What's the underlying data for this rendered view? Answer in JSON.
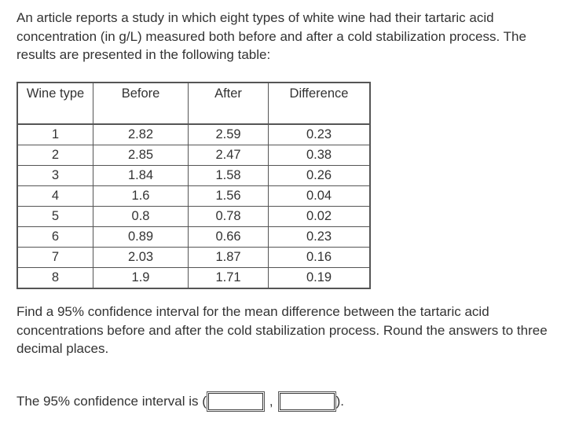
{
  "intro": "An article reports a study in which eight types of white wine had their tartaric acid concentration (in g/L) measured both before and after a cold stabilization process. The results are presented in the following table:",
  "table": {
    "headers": {
      "wine_type": "Wine type",
      "before": "Before",
      "after": "After",
      "difference": "Difference"
    },
    "rows": [
      {
        "wine": "1",
        "before": "2.82",
        "after": "2.59",
        "difference": "0.23"
      },
      {
        "wine": "2",
        "before": "2.85",
        "after": "2.47",
        "difference": "0.38"
      },
      {
        "wine": "3",
        "before": "1.84",
        "after": "1.58",
        "difference": "0.26"
      },
      {
        "wine": "4",
        "before": "1.6",
        "after": "1.56",
        "difference": "0.04"
      },
      {
        "wine": "5",
        "before": "0.8",
        "after": "0.78",
        "difference": "0.02"
      },
      {
        "wine": "6",
        "before": "0.89",
        "after": "0.66",
        "difference": "0.23"
      },
      {
        "wine": "7",
        "before": "2.03",
        "after": "1.87",
        "difference": "0.16"
      },
      {
        "wine": "8",
        "before": "1.9",
        "after": "1.71",
        "difference": "0.19"
      }
    ]
  },
  "question": "Find a 95% confidence interval for the mean difference between the tartaric acid concentrations before and after the cold stabilization process. Round the answers to three decimal places.",
  "answer": {
    "prefix": "The 95% confidence interval is (",
    "separator": ",",
    "suffix": ").",
    "lower_value": "",
    "upper_value": ""
  }
}
